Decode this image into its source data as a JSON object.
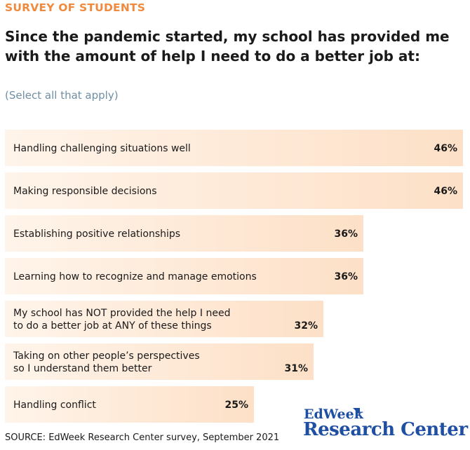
{
  "kicker": "SURVEY OF STUDENTS",
  "title": "Since the pandemic started, my school has provided me with the amount of help I need to do a better job at:",
  "subtitle": "(Select all that apply)",
  "source": "SOURCE: EdWeek Research Center survey, September 2021",
  "logo": {
    "top": "EdWeek",
    "bottom": "Research Center"
  },
  "colors": {
    "bar_start": "#fde0c7",
    "bar_end": "#fff4ea",
    "kicker": "#f08a3e",
    "logo": "#1f4fa3",
    "subtitle": "#6f8ea3"
  },
  "chart_data": {
    "type": "bar",
    "orientation": "horizontal",
    "categories": [
      "Handling challenging situations well",
      "Making responsible decisions",
      "Establishing positive relationships",
      "Learning how to recognize and manage emotions",
      "My school has NOT provided the help I need to do a better job at ANY of these things",
      "Taking on other people’s perspectives so I understand them better",
      "Handling conflict"
    ],
    "category_lines": [
      [
        "Handling challenging situations well"
      ],
      [
        "Making responsible decisions"
      ],
      [
        "Establishing positive relationships"
      ],
      [
        "Learning how to recognize and manage emotions"
      ],
      [
        "My school has NOT provided the help I need",
        "to do a better job at ANY of these things"
      ],
      [
        "Taking on other people’s perspectives",
        "so I understand them better"
      ],
      [
        "Handling conflict"
      ]
    ],
    "values": [
      46,
      46,
      36,
      36,
      32,
      31,
      25
    ],
    "value_labels": [
      "46%",
      "46%",
      "36%",
      "36%",
      "32%",
      "31%",
      "25%"
    ],
    "unit": "%",
    "xlim": [
      0,
      46
    ]
  }
}
